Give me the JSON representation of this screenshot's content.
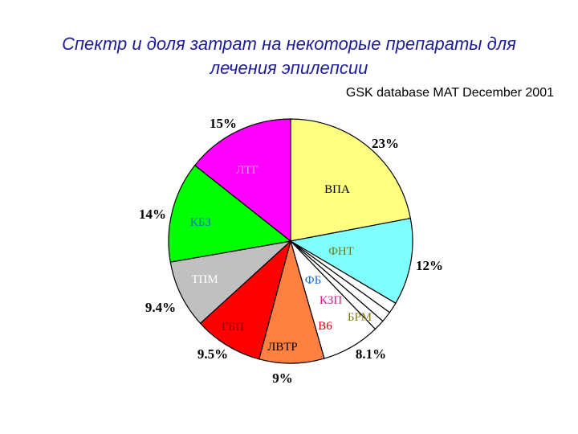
{
  "title_line1": "Спектр и доля затрат на некоторые препараты для",
  "title_line2": "лечения эпилепсии",
  "subtitle": "GSK database MAT December 2001",
  "chart_data": {
    "type": "pie",
    "slices": [
      {
        "label": "ВПА",
        "percent_label": "23%",
        "value": 23,
        "color": "#ffff80",
        "label_color": "#000000"
      },
      {
        "label": "ФНТ",
        "percent_label": "12%",
        "value": 12,
        "color": "#80ffff",
        "label_color": "#7a7a10"
      },
      {
        "label": "ФБ",
        "percent_label": "",
        "value": 1.5,
        "color": "#ffffff",
        "label_color": "#1a6ad8"
      },
      {
        "label": "КЗП",
        "percent_label": "",
        "value": 1.5,
        "color": "#ffffff",
        "label_color": "#e0198c"
      },
      {
        "label": "В6",
        "percent_label": "",
        "value": 1.5,
        "color": "#ffffff",
        "label_color": "#cc0000"
      },
      {
        "label": "БРМ",
        "percent_label": "8.1%",
        "value": 8.1,
        "color": "#ffffff",
        "label_color": "#8a7a10"
      },
      {
        "label": "ЛВТР",
        "percent_label": "9%",
        "value": 9,
        "color": "#ff8040",
        "label_color": "#000000"
      },
      {
        "label": "ГБП",
        "percent_label": "9.5%",
        "value": 9.5,
        "color": "#ff0000",
        "label_color": "#8b0000"
      },
      {
        "label": "ТПМ",
        "percent_label": "9.4%",
        "value": 9.4,
        "color": "#c0c0c0",
        "label_color": "#ffffff"
      },
      {
        "label": "КБЗ",
        "percent_label": "14%",
        "value": 14,
        "color": "#00ff00",
        "label_color": "#1a6ad8"
      },
      {
        "label": "ЛТГ",
        "percent_label": "15%",
        "value": 15,
        "color": "#ff00ff",
        "label_color": "#ff99ff"
      }
    ]
  }
}
